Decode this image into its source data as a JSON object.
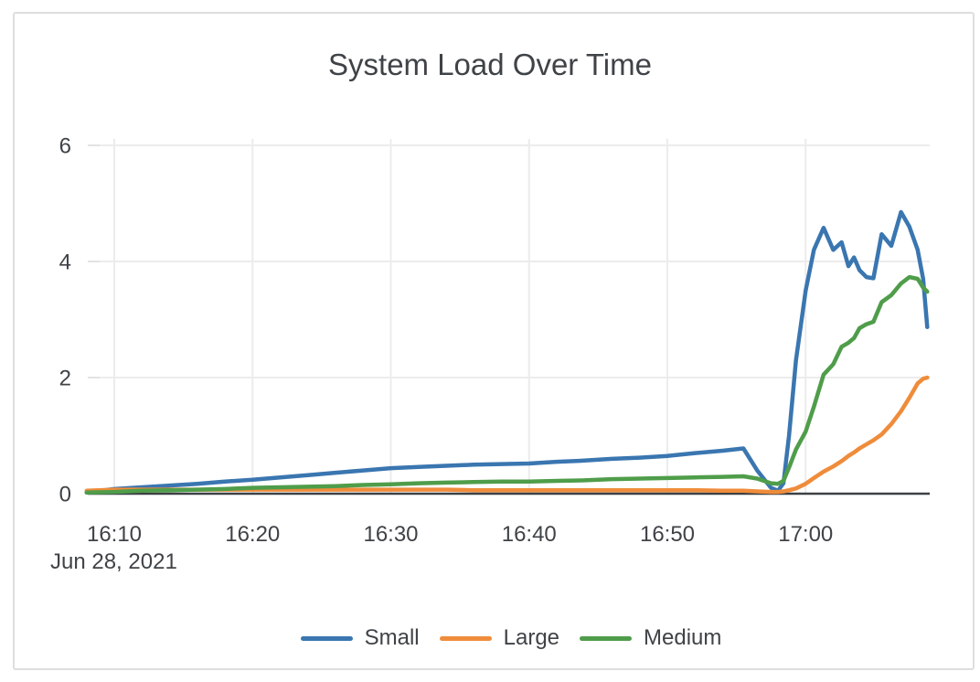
{
  "page": {
    "background_color": "#ffffff",
    "card_border_color": "#dedede"
  },
  "chart": {
    "title": "System Load Over Time",
    "text_color": "#3f4347",
    "grid_color": "#ececec",
    "axis_color": "#3d4043"
  },
  "chart_data": {
    "type": "line",
    "title": "System Load Over Time",
    "grid": true,
    "legend_position": "bottom-center",
    "x_axis": {
      "date_label": "Jun 28, 2021",
      "tick_labels": [
        "16:10",
        "16:20",
        "16:30",
        "16:40",
        "16:50",
        "17:00"
      ],
      "tick_minutes": [
        10,
        20,
        30,
        40,
        50,
        60
      ],
      "range_minutes": [
        8,
        69
      ]
    },
    "y_axis": {
      "tick_labels": [
        "0",
        "2",
        "4",
        "6"
      ],
      "tick_values": [
        0,
        2,
        4,
        6
      ],
      "range": [
        0,
        6
      ]
    },
    "x_minutes": [
      8,
      10,
      12,
      14,
      16,
      18,
      20,
      22,
      24,
      26,
      28,
      30,
      32,
      34,
      36,
      38,
      40,
      42,
      44,
      46,
      48,
      50,
      52,
      54,
      55.5,
      56.5,
      57.5,
      58,
      58.4,
      58.8,
      59.3,
      60,
      60.6,
      61.3,
      62,
      62.6,
      63.1,
      63.5,
      63.9,
      64.4,
      64.9,
      65.5,
      66.2,
      66.9,
      67.5,
      68.1,
      68.5,
      68.8
    ],
    "series": [
      {
        "name": "Small",
        "color": "#3a76b0",
        "values": [
          0.02,
          0.08,
          0.11,
          0.14,
          0.17,
          0.21,
          0.24,
          0.28,
          0.32,
          0.36,
          0.4,
          0.44,
          0.46,
          0.48,
          0.5,
          0.51,
          0.52,
          0.55,
          0.57,
          0.6,
          0.62,
          0.65,
          0.7,
          0.74,
          0.78,
          0.4,
          0.1,
          0.05,
          0.18,
          1.0,
          2.3,
          3.5,
          4.2,
          4.58,
          4.2,
          4.33,
          3.92,
          4.07,
          3.85,
          3.73,
          3.71,
          4.47,
          4.27,
          4.85,
          4.6,
          4.2,
          3.7,
          2.87
        ]
      },
      {
        "name": "Large",
        "color": "#ef8c3b",
        "values": [
          0.05,
          0.07,
          0.07,
          0.07,
          0.07,
          0.07,
          0.07,
          0.07,
          0.07,
          0.07,
          0.07,
          0.07,
          0.07,
          0.07,
          0.06,
          0.06,
          0.06,
          0.06,
          0.06,
          0.06,
          0.06,
          0.06,
          0.06,
          0.05,
          0.05,
          0.04,
          0.03,
          0.03,
          0.04,
          0.06,
          0.09,
          0.17,
          0.27,
          0.38,
          0.47,
          0.56,
          0.65,
          0.71,
          0.78,
          0.85,
          0.92,
          1.02,
          1.2,
          1.42,
          1.65,
          1.9,
          1.98,
          2.0
        ]
      },
      {
        "name": "Medium",
        "color": "#4f9d4a",
        "values": [
          0.02,
          0.03,
          0.05,
          0.06,
          0.07,
          0.08,
          0.1,
          0.11,
          0.12,
          0.13,
          0.15,
          0.16,
          0.18,
          0.19,
          0.2,
          0.21,
          0.21,
          0.22,
          0.23,
          0.25,
          0.26,
          0.27,
          0.28,
          0.29,
          0.3,
          0.26,
          0.18,
          0.17,
          0.22,
          0.45,
          0.76,
          1.07,
          1.5,
          2.05,
          2.23,
          2.53,
          2.6,
          2.68,
          2.85,
          2.92,
          2.96,
          3.3,
          3.42,
          3.62,
          3.73,
          3.7,
          3.55,
          3.48
        ]
      }
    ]
  }
}
